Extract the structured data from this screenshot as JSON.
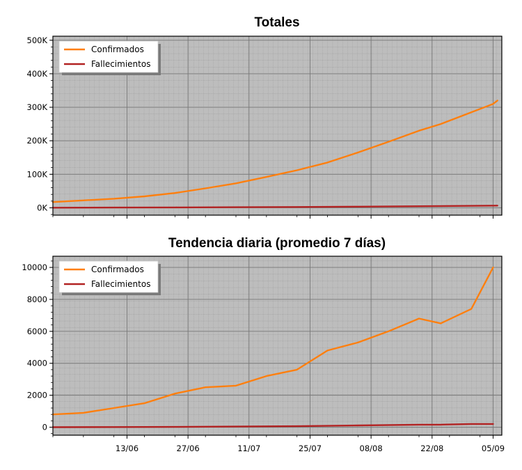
{
  "chart_data": [
    {
      "type": "line",
      "title": "Totales",
      "xlabel": "",
      "ylabel": "",
      "x_start": "2020-05-27",
      "x_end": "2020-09-06",
      "xlim": [
        "2020-05-27",
        "2020-09-07"
      ],
      "ylim": [
        -22000,
        512000
      ],
      "yticks": [
        0,
        100000,
        200000,
        300000,
        400000,
        500000
      ],
      "ytick_labels": [
        "0K",
        "100K",
        "200K",
        "300K",
        "400K",
        "500K"
      ],
      "xticks": [
        "2020-06-13",
        "2020-06-27",
        "2020-07-11",
        "2020-07-25",
        "2020-08-08",
        "2020-08-22",
        "2020-09-05"
      ],
      "xtick_labels": [],
      "grid": true,
      "legend": "top-left",
      "series": [
        {
          "name": "Confirmados",
          "color": "#ff7f0e",
          "points": [
            [
              "2020-05-27",
              17000
            ],
            [
              "2020-06-03",
              22000
            ],
            [
              "2020-06-10",
              27000
            ],
            [
              "2020-06-17",
              34000
            ],
            [
              "2020-06-24",
              44000
            ],
            [
              "2020-07-01",
              58000
            ],
            [
              "2020-07-08",
              73000
            ],
            [
              "2020-07-15",
              92000
            ],
            [
              "2020-07-22",
              112000
            ],
            [
              "2020-07-29",
              135000
            ],
            [
              "2020-08-05",
              165000
            ],
            [
              "2020-08-12",
              197000
            ],
            [
              "2020-08-19",
              230000
            ],
            [
              "2020-08-24",
              250000
            ],
            [
              "2020-08-31",
              285000
            ],
            [
              "2020-09-05",
              310000
            ],
            [
              "2020-09-06",
              320000
            ]
          ]
        },
        {
          "name": "Fallecimientos",
          "color": "#b22222",
          "points": [
            [
              "2020-05-27",
              300
            ],
            [
              "2020-06-10",
              600
            ],
            [
              "2020-06-24",
              1000
            ],
            [
              "2020-07-08",
              1600
            ],
            [
              "2020-07-22",
              2400
            ],
            [
              "2020-08-05",
              3400
            ],
            [
              "2020-08-19",
              4600
            ],
            [
              "2020-09-06",
              6500
            ]
          ]
        }
      ]
    },
    {
      "type": "line",
      "title": "Tendencia diaria (promedio 7 días)",
      "xlabel": "",
      "ylabel": "",
      "xlim": [
        "2020-05-27",
        "2020-09-07"
      ],
      "ylim": [
        -500,
        10700
      ],
      "yticks": [
        0,
        2000,
        4000,
        6000,
        8000,
        10000
      ],
      "ytick_labels": [
        "0",
        "2000",
        "4000",
        "6000",
        "8000",
        "10000"
      ],
      "xticks": [
        "2020-06-13",
        "2020-06-27",
        "2020-07-11",
        "2020-07-25",
        "2020-08-08",
        "2020-08-22",
        "2020-09-05"
      ],
      "xtick_labels": [
        "13/06",
        "27/06",
        "11/07",
        "25/07",
        "08/08",
        "22/08",
        "05/09"
      ],
      "grid": true,
      "legend": "top-left",
      "series": [
        {
          "name": "Confirmados",
          "color": "#ff7f0e",
          "points": [
            [
              "2020-05-27",
              800
            ],
            [
              "2020-06-03",
              900
            ],
            [
              "2020-06-10",
              1200
            ],
            [
              "2020-06-17",
              1500
            ],
            [
              "2020-06-24",
              2100
            ],
            [
              "2020-07-01",
              2500
            ],
            [
              "2020-07-08",
              2600
            ],
            [
              "2020-07-15",
              3200
            ],
            [
              "2020-07-22",
              3600
            ],
            [
              "2020-07-29",
              4800
            ],
            [
              "2020-08-05",
              5300
            ],
            [
              "2020-08-12",
              6000
            ],
            [
              "2020-08-19",
              6800
            ],
            [
              "2020-08-24",
              6500
            ],
            [
              "2020-08-31",
              7400
            ],
            [
              "2020-09-05",
              10000
            ]
          ]
        },
        {
          "name": "Fallecimientos",
          "color": "#b22222",
          "points": [
            [
              "2020-05-27",
              0
            ],
            [
              "2020-06-10",
              10
            ],
            [
              "2020-06-24",
              20
            ],
            [
              "2020-07-08",
              40
            ],
            [
              "2020-07-22",
              60
            ],
            [
              "2020-08-05",
              110
            ],
            [
              "2020-08-19",
              160
            ],
            [
              "2020-08-24",
              160
            ],
            [
              "2020-08-31",
              200
            ],
            [
              "2020-09-05",
              200
            ]
          ]
        }
      ]
    }
  ]
}
